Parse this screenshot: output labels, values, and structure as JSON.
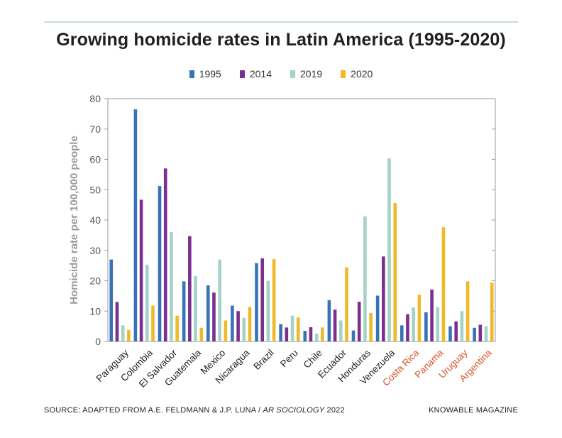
{
  "chart_data": {
    "type": "bar",
    "title": "Growing homicide rates in Latin America (1995-2020)",
    "ylabel": "Homicide rate per 100,000 people",
    "xlabel": "",
    "ylim": [
      0,
      80
    ],
    "yticks": [
      0,
      10,
      20,
      30,
      40,
      50,
      60,
      70,
      80
    ],
    "grid": false,
    "legend_position": "top-center",
    "categories": [
      "Paraguay",
      "Colombia",
      "El Salvador",
      "Guatemala",
      "Mexico",
      "Nicaragua",
      "Brazil",
      "Peru",
      "Chile",
      "Ecuador",
      "Honduras",
      "Venezuela",
      "Costa Rica",
      "Panama",
      "Uruguay",
      "Argentina"
    ],
    "highlighted_categories": [
      "Costa Rica",
      "Panama",
      "Uruguay",
      "Argentina"
    ],
    "series": [
      {
        "name": "1995",
        "color": "#3a72b8",
        "values": [
          27,
          76.5,
          51.2,
          19.8,
          18.5,
          11.8,
          25.8,
          5.7,
          3.5,
          13.6,
          3.6,
          15.1,
          5.3,
          9.6,
          5,
          4.5
        ]
      },
      {
        "name": "2014",
        "color": "#7b2f8e",
        "values": [
          13,
          46.7,
          57,
          34.7,
          16.1,
          10,
          27.4,
          4.6,
          4.7,
          10.5,
          13.1,
          28,
          9,
          17.1,
          6.6,
          5.5
        ]
      },
      {
        "name": "2019",
        "color": "#a3d3c6",
        "values": [
          5.3,
          25.3,
          36,
          21.5,
          27,
          7.8,
          20,
          8.5,
          2.6,
          6.9,
          41.2,
          60.3,
          11.2,
          11.3,
          10,
          5
        ]
      },
      {
        "name": "2020",
        "color": "#f0b929",
        "values": [
          3.8,
          11.8,
          8.5,
          4.5,
          6.9,
          11.4,
          27.1,
          7.9,
          4.6,
          24.4,
          9.4,
          45.6,
          15.4,
          37.6,
          19.8,
          19.4
        ]
      }
    ]
  },
  "colors": {
    "highlight_label": "#d8552a",
    "axis": "#9a9a9a",
    "top_rule": "#c8dcd9"
  },
  "footer": {
    "source_prefix": "SOURCE: ADAPTED FROM A.E. FELDMANN & J.P. LUNA / ",
    "source_italic": "AR SOCIOLOGY",
    "source_suffix": " 2022",
    "brand": "KNOWABLE MAGAZINE"
  }
}
